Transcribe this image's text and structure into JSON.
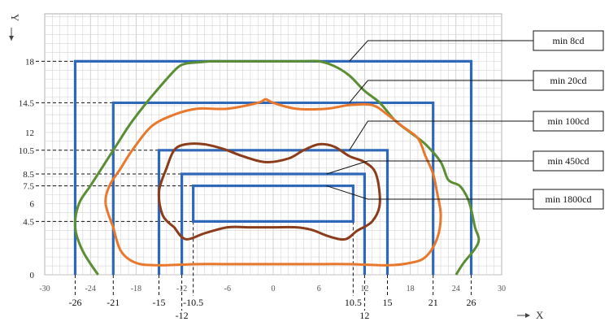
{
  "chart_data": {
    "type": "line",
    "title": "",
    "xlabel": "X",
    "ylabel": "Y",
    "xlim": [
      -30,
      30
    ],
    "ylim": [
      0,
      22
    ],
    "grid": true,
    "x_ticks": [
      "-30",
      "-24",
      "-18",
      "-12",
      "-6",
      "0",
      "6",
      "12",
      "18",
      "24",
      "30"
    ],
    "y_ticks": [
      "0",
      "4.5",
      "6",
      "7.5",
      "8.5",
      "10.5",
      "12",
      "14.5",
      "18"
    ],
    "bottom_labels": [
      {
        "x": -26,
        "text": "-26",
        "row": 1
      },
      {
        "x": -21,
        "text": "-21",
        "row": 1
      },
      {
        "x": -15,
        "text": "-15",
        "row": 1
      },
      {
        "x": -10.5,
        "text": "-10.5",
        "row": 1
      },
      {
        "x": -12,
        "text": "-12",
        "row": 2
      },
      {
        "x": 10.5,
        "text": "10.5",
        "row": 1
      },
      {
        "x": 12,
        "text": "12",
        "row": 2
      },
      {
        "x": 15,
        "text": "15",
        "row": 1
      },
      {
        "x": 21,
        "text": "21",
        "row": 1
      },
      {
        "x": 26,
        "text": "26",
        "row": 1
      }
    ],
    "rectangles": [
      {
        "name": "min 8cd",
        "x_range": [
          -26,
          26
        ],
        "y_range": [
          0,
          18
        ],
        "color": "#2f68b8"
      },
      {
        "name": "min 20cd",
        "x_range": [
          -21,
          21
        ],
        "y_range": [
          0,
          14.5
        ],
        "color": "#2f68b8"
      },
      {
        "name": "min 100cd",
        "x_range": [
          -15,
          15
        ],
        "y_range": [
          0,
          10.5
        ],
        "color": "#2f68b8"
      },
      {
        "name": "min 450cd",
        "x_range": [
          -12,
          12
        ],
        "y_range": [
          0,
          8.5
        ],
        "color": "#2f68b8"
      },
      {
        "name": "min 1800cd",
        "x_range": [
          -10.5,
          10.5
        ],
        "y_range": [
          4.5,
          7.5
        ],
        "color": "#2f68b8"
      }
    ],
    "series": [
      {
        "color": "#5b8e34",
        "x": [
          -23,
          -25,
          -26,
          -25.5,
          -24,
          -22,
          -20.5,
          -19,
          -17.5,
          -16,
          -14,
          -12.5,
          -11.5,
          -10,
          -8,
          -6,
          -4,
          -2,
          0,
          2,
          4,
          6,
          8,
          10,
          12,
          14,
          16,
          18,
          20,
          22,
          23,
          24.5,
          25.5,
          26,
          26.5,
          27,
          26.5,
          25,
          24
        ],
        "y": [
          0,
          2,
          4,
          6,
          7.5,
          9.5,
          11,
          12.5,
          13.8,
          15,
          16.5,
          17.5,
          17.8,
          17.9,
          18,
          18,
          18,
          18,
          18,
          18,
          18,
          18,
          17.6,
          16.8,
          15.5,
          14.5,
          13,
          12,
          11,
          9.5,
          8,
          7.5,
          6.5,
          5.5,
          4,
          3,
          2.2,
          1,
          0
        ]
      },
      {
        "color": "#e8782c",
        "x": [
          -21,
          -22,
          -21.5,
          -20,
          -18.5,
          -16,
          -13,
          -10,
          -6,
          -2,
          -1,
          0,
          3,
          7,
          10,
          13,
          15,
          17,
          19,
          20,
          21,
          21.5,
          22,
          21.5,
          20,
          18,
          15,
          10,
          5,
          0,
          -5,
          -10,
          -15,
          -18,
          -20,
          -21
        ],
        "y": [
          4,
          6,
          7.5,
          9,
          10.5,
          12.5,
          13.5,
          14,
          14,
          14.5,
          14.8,
          14.5,
          14,
          14,
          14.3,
          14.3,
          13.5,
          12.5,
          11.5,
          10,
          8.5,
          7,
          5,
          3,
          1.5,
          1,
          0.8,
          0.9,
          0.9,
          0.9,
          0.9,
          0.9,
          0.8,
          1,
          2,
          4
        ]
      },
      {
        "color": "#8b3c1a",
        "x": [
          -13,
          -14.5,
          -15,
          -14,
          -13,
          -11.5,
          -9,
          -6.5,
          -4,
          -1,
          2,
          4,
          6,
          8,
          10,
          12,
          13.5,
          14,
          13,
          11,
          9.5,
          7.5,
          5,
          3,
          0,
          -3,
          -6,
          -9,
          -11.5,
          -13
        ],
        "y": [
          4,
          5,
          7,
          9,
          10.5,
          11,
          11,
          10.6,
          10,
          9.5,
          9.8,
          10.5,
          11,
          10.8,
          10,
          9.5,
          8.5,
          6,
          4.5,
          3.7,
          3,
          3.2,
          3.8,
          4,
          4,
          4,
          4,
          3.5,
          3,
          4
        ]
      }
    ]
  }
}
